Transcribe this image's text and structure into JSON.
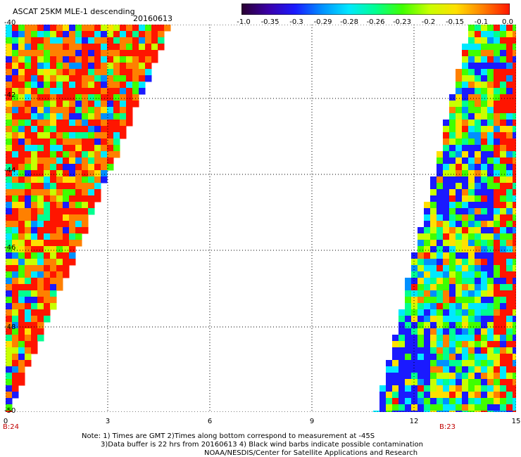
{
  "header": {
    "title": "ASCAT 25KM MLE-1 descending",
    "date": "20160613"
  },
  "colorbar": {
    "ticks": [
      "-1.0",
      "-0.35",
      "-0.3",
      "-0.29",
      "-0.28",
      "-0.26",
      "-0.23",
      "-0.2",
      "-0.15",
      "-0.1",
      "0.0"
    ],
    "colors": [
      "#2a0030",
      "#3b00a8",
      "#1a1aff",
      "#0090ff",
      "#00e8ff",
      "#00ff90",
      "#40ff00",
      "#c8ff00",
      "#ffe000",
      "#ff8000",
      "#ff1500"
    ]
  },
  "map": {
    "y_ticks": [
      "-40",
      "-42",
      "-44",
      "-46",
      "-48",
      "-50"
    ],
    "x_ticks": [
      "0",
      "3",
      "6",
      "9",
      "12",
      "15"
    ],
    "time_labels": [
      "B:24",
      "B:23"
    ],
    "lat_range": [
      -50,
      -40
    ],
    "lon_range": [
      0,
      15
    ],
    "grid": true
  },
  "notes": {
    "line1": "Note: 1) Times are GMT 2)Times along bottom correspond to measurement at -45S",
    "line2": "3)Data buffer is 22 hrs from 20160613 4) Black wind barbs indicate possible contamination",
    "line3": "NOAA/NESDIS/Center for Satellite Applications and Research"
  }
}
